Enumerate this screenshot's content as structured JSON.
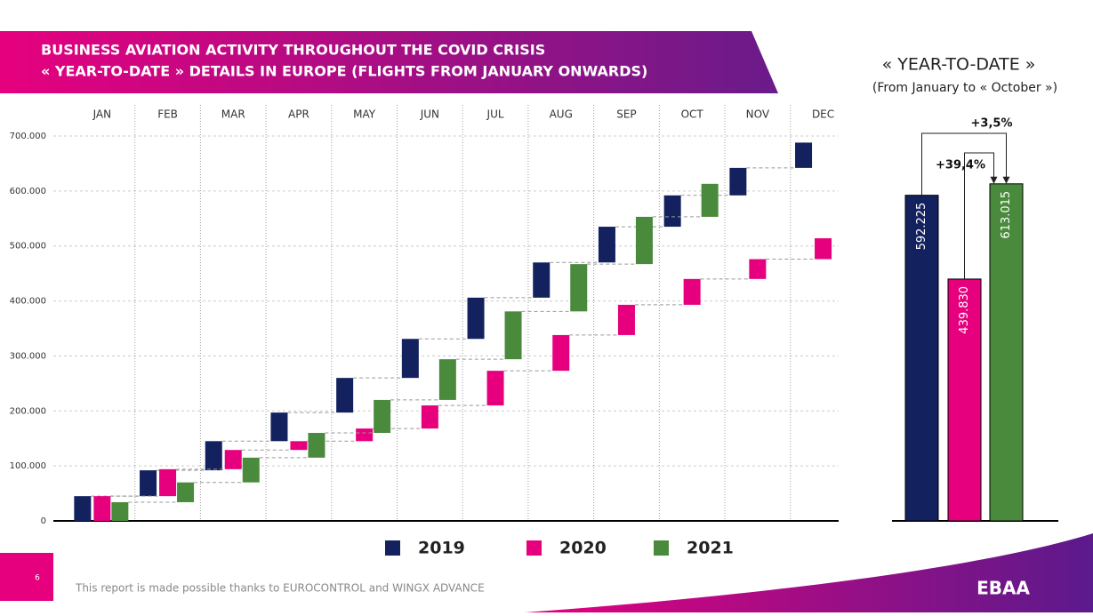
{
  "header": {
    "title": [
      "BUSINESS AVIATION ACTIVITY THROUGHOUT THE COVID CRISIS",
      "« YEAR-TO-DATE » DETAILS IN EUROPE (FLIGHTS FROM JANUARY ONWARDS)"
    ]
  },
  "footer": {
    "page": "6",
    "note": "This report is made possible thanks to EUROCONTROL and WINGX ADVANCE",
    "logo": "EBAA"
  },
  "chart_data": [
    {
      "type": "waterfall",
      "categories": [
        "JAN",
        "FEB",
        "MAR",
        "APR",
        "MAY",
        "JUN",
        "JUL",
        "AUG",
        "SEP",
        "OCT",
        "NOV",
        "DEC"
      ],
      "series": [
        {
          "name": "2019",
          "color": "#13215e",
          "values": [
            45000,
            47000,
            53000,
            52000,
            63000,
            71000,
            75000,
            64000,
            65000,
            57000,
            50000,
            46000
          ]
        },
        {
          "name": "2020",
          "color": "#e6007e",
          "values": [
            45000,
            49000,
            35000,
            16000,
            23000,
            42000,
            63000,
            65000,
            55000,
            47000,
            36000,
            38000
          ]
        },
        {
          "name": "2021",
          "color": "#4a8a3c",
          "values": [
            34000,
            36000,
            45000,
            45000,
            60000,
            74000,
            87000,
            86000,
            86000,
            60000,
            null,
            null
          ]
        }
      ],
      "ylim": [
        0,
        700000
      ],
      "yticks": [
        {
          "value": 0,
          "label": "0"
        },
        {
          "value": 100000,
          "label": "100.000"
        },
        {
          "value": 200000,
          "label": "200.000"
        },
        {
          "value": 300000,
          "label": "300.000"
        },
        {
          "value": 400000,
          "label": "400.000"
        },
        {
          "value": 500000,
          "label": "500.000"
        },
        {
          "value": 600000,
          "label": "600.000"
        },
        {
          "value": 700000,
          "label": "700.000"
        }
      ],
      "grid": true,
      "legend": "bottom"
    },
    {
      "type": "bar",
      "title": "« YEAR-TO-DATE »",
      "subtitle": "(From January to « October »)",
      "values": [
        592225,
        439830,
        613015
      ],
      "value_labels": [
        "592.225",
        "439.830",
        "613.015"
      ],
      "colors": [
        "#13215e",
        "#e6007e",
        "#4a8a3c"
      ],
      "ylim": [
        0,
        700000
      ],
      "annotations": [
        "+3,5%",
        "+39,4%"
      ]
    }
  ]
}
